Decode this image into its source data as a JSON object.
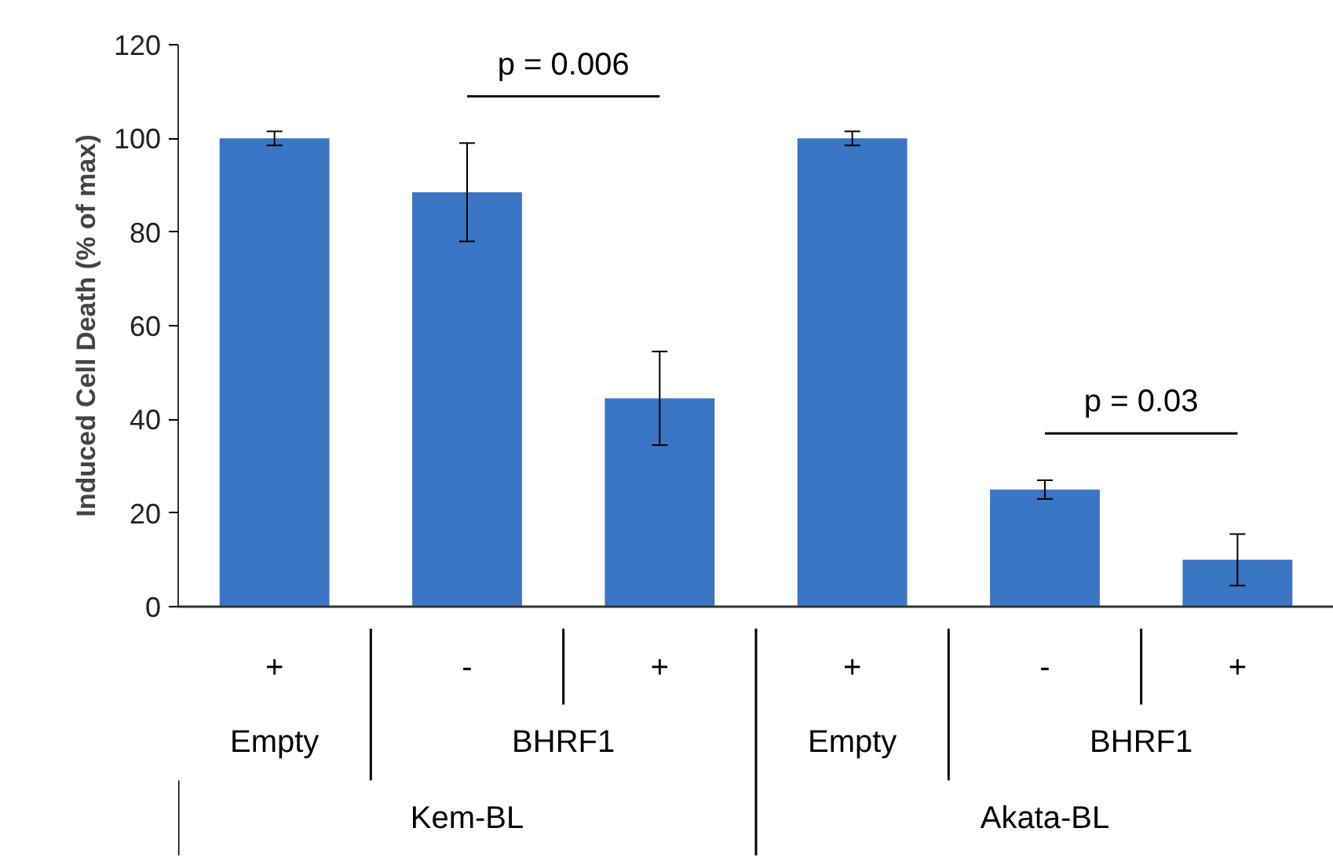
{
  "chart_data": {
    "type": "bar",
    "ylabel": "Induced Cell Death (% of max)",
    "categories": [
      "+",
      "-",
      "+",
      "+",
      "-",
      "+"
    ],
    "values": [
      100,
      88.5,
      44.5,
      100,
      25,
      10
    ],
    "errors": [
      1.5,
      10.5,
      10,
      1.5,
      2,
      5.5
    ],
    "color": "#3a76c4",
    "ylim": [
      0,
      120
    ],
    "yticks": [
      0,
      20,
      40,
      60,
      80,
      100,
      120
    ],
    "grid": false,
    "annotations": [
      "p = 0.006",
      "p = 0.03",
      "Empty",
      "BHRF1",
      "Empty",
      "BHRF1",
      "Kem-BL",
      "Akata-BL"
    ]
  }
}
